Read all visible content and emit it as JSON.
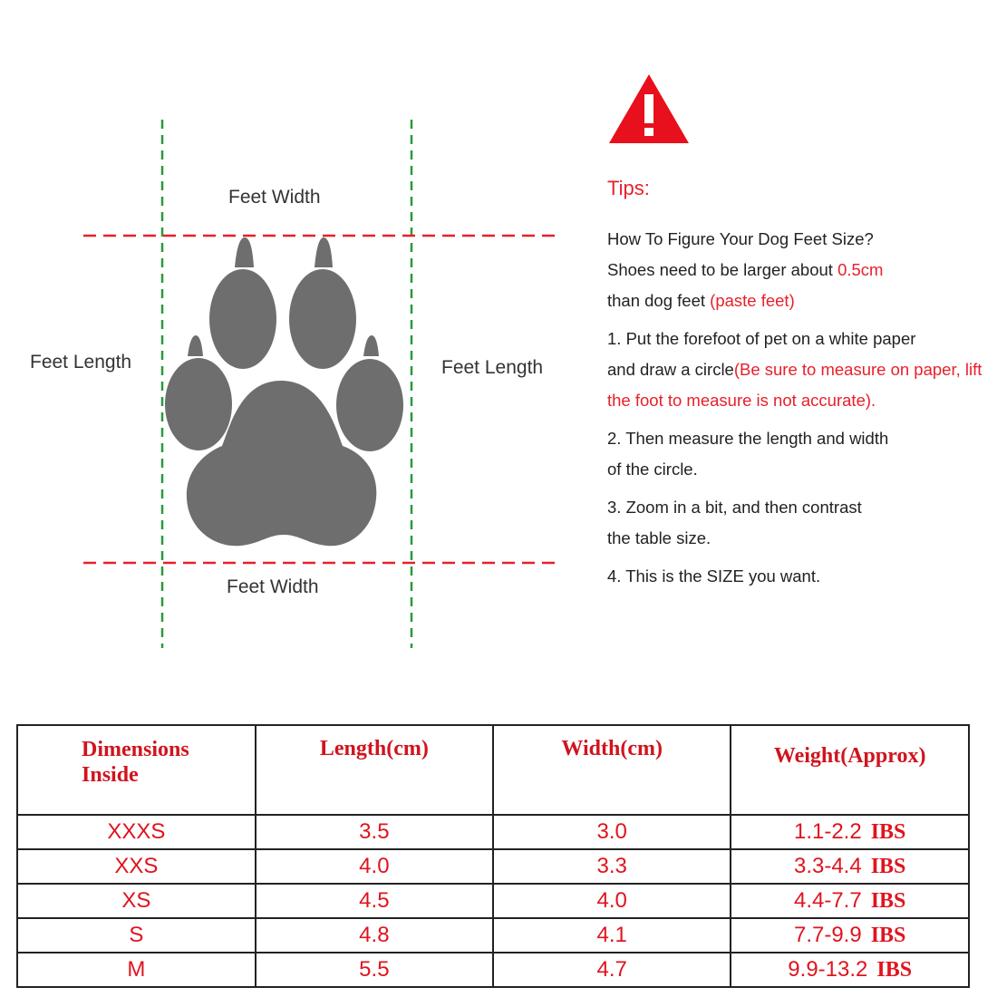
{
  "diagram": {
    "labels": {
      "top_width": "Feet Width",
      "bottom_width": "Feet Width",
      "left_length": "Feet Length",
      "right_length": "Feet Length"
    },
    "colors": {
      "paw": "#6e6e6e",
      "width_guides": "#e8202a",
      "length_guides": "#2a9a3a"
    }
  },
  "tips": {
    "icon": "warning-triangle-icon",
    "title": "Tips:",
    "line1": "How To Figure Your Dog Feet Size?",
    "line2_a": "Shoes need to be larger about ",
    "line2_b": "0.5cm",
    "line3_a": "than dog feet ",
    "line3_b": "(paste feet)",
    "step1_a": "1.  Put the forefoot of pet on a white paper",
    "step1_b": " and draw a circle",
    "step1_c": "(Be sure to measure on paper, lift the foot to measure is not accurate).",
    "step2_a": "2.  Then measure the length and width",
    "step2_b": " of the circle.",
    "step3_a": "3.  Zoom in a bit, and then contrast",
    "step3_b": "the table size.",
    "step4": "4. This is the SIZE you want."
  },
  "table": {
    "headers": [
      "Dimensions Inside",
      "Length(cm)",
      "Width(cm)",
      "Weight(Approx)"
    ],
    "rows": [
      [
        "XXXS",
        "3.5",
        "3.0",
        "1.1-2.2",
        "IBS"
      ],
      [
        "XXS",
        "4.0",
        "3.3",
        "3.3-4.4",
        "IBS"
      ],
      [
        "XS",
        "4.5",
        "4.0",
        "4.4-7.7",
        "IBS"
      ],
      [
        "S",
        "4.8",
        "4.1",
        "7.7-9.9",
        "IBS"
      ],
      [
        "M",
        "5.5",
        "4.7",
        "9.9-13.2",
        "IBS"
      ]
    ]
  }
}
